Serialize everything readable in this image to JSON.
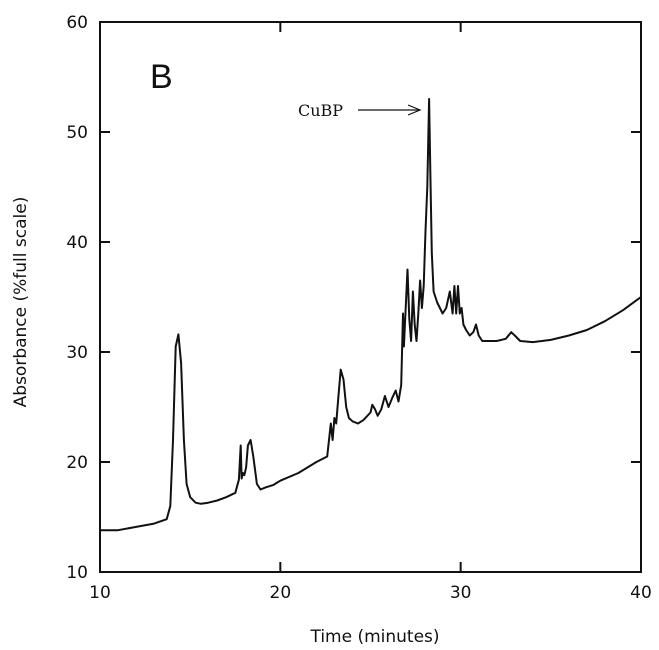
{
  "chart_data": {
    "type": "line",
    "panel_label": "B",
    "xlabel": "Time (minutes)",
    "ylabel": "Absorbance (%full scale)",
    "xlim": [
      10,
      40
    ],
    "ylim": [
      10,
      60
    ],
    "x_ticks": [
      10,
      20,
      30,
      40
    ],
    "y_ticks": [
      10,
      20,
      30,
      40,
      50,
      60
    ],
    "x_tick_labels": [
      "10",
      "20",
      "30",
      "40"
    ],
    "y_tick_labels": [
      "10",
      "20",
      "30",
      "40",
      "50",
      "60"
    ],
    "grid": false,
    "annotations": [
      {
        "text": "CuBP",
        "x": 28.3,
        "y": 52.0
      }
    ],
    "series": [
      {
        "x": [
          10.0,
          11.0,
          12.0,
          13.0,
          13.7,
          13.9,
          14.05,
          14.2,
          14.35,
          14.5,
          14.65,
          14.8,
          15.0,
          15.3,
          15.6,
          16.0,
          16.5,
          17.0,
          17.5,
          17.7,
          17.8,
          17.85,
          17.92,
          18.0,
          18.1,
          18.2,
          18.35,
          18.5,
          18.7,
          18.9,
          19.2,
          19.6,
          20.0,
          21.0,
          22.0,
          22.6,
          22.8,
          22.9,
          23.0,
          23.1,
          23.2,
          23.35,
          23.5,
          23.65,
          23.8,
          24.0,
          24.3,
          24.6,
          25.0,
          25.1,
          25.25,
          25.4,
          25.6,
          25.8,
          26.0,
          26.2,
          26.4,
          26.55,
          26.7,
          26.8,
          26.85,
          26.95,
          27.05,
          27.15,
          27.25,
          27.35,
          27.45,
          27.55,
          27.65,
          27.75,
          27.85,
          27.95,
          28.05,
          28.15,
          28.25,
          28.32,
          28.4,
          28.5,
          28.6,
          28.7,
          28.85,
          29.0,
          29.2,
          29.4,
          29.55,
          29.65,
          29.75,
          29.85,
          29.95,
          30.05,
          30.15,
          30.3,
          30.5,
          30.7,
          30.85,
          31.0,
          31.2,
          31.5,
          32.0,
          32.5,
          32.8,
          33.0,
          33.3,
          34.0,
          35.0,
          36.0,
          37.0,
          38.0,
          39.0,
          40.0
        ],
        "y": [
          13.8,
          13.8,
          14.1,
          14.4,
          14.8,
          16.0,
          22.0,
          30.5,
          31.6,
          29.0,
          22.0,
          18.0,
          16.8,
          16.3,
          16.2,
          16.3,
          16.5,
          16.8,
          17.2,
          18.4,
          21.5,
          18.5,
          19.0,
          18.8,
          19.5,
          21.5,
          22.0,
          20.5,
          18.0,
          17.5,
          17.7,
          17.9,
          18.3,
          19.0,
          20.0,
          20.5,
          23.5,
          22.0,
          24.0,
          23.5,
          25.5,
          28.4,
          27.5,
          25.0,
          24.0,
          23.7,
          23.5,
          23.8,
          24.5,
          25.2,
          24.8,
          24.2,
          24.8,
          26.0,
          25.0,
          25.8,
          26.5,
          25.5,
          27.0,
          33.5,
          30.5,
          34.0,
          37.5,
          33.0,
          31.0,
          35.5,
          32.5,
          31.0,
          33.5,
          36.5,
          34.0,
          36.0,
          41.0,
          45.0,
          53.0,
          46.0,
          39.0,
          35.5,
          35.0,
          34.5,
          34.0,
          33.5,
          34.0,
          35.5,
          33.5,
          36.0,
          33.5,
          36.0,
          33.5,
          34.0,
          32.5,
          32.0,
          31.5,
          31.8,
          32.5,
          31.5,
          31.0,
          31.0,
          31.0,
          31.2,
          31.8,
          31.5,
          31.0,
          30.9,
          31.1,
          31.5,
          32.0,
          32.8,
          33.8,
          35.0
        ]
      }
    ]
  }
}
